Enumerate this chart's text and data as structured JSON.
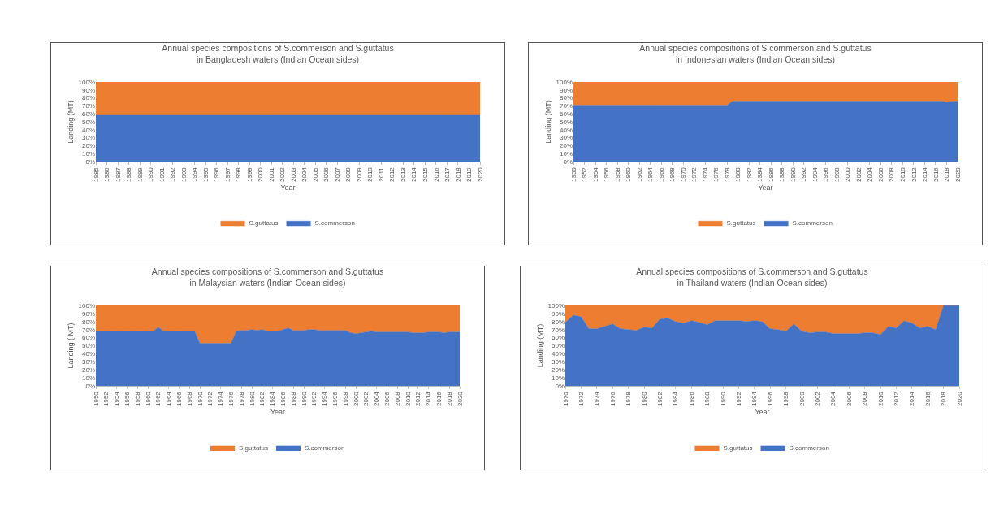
{
  "chart_data": [
    {
      "type": "area",
      "stacked": true,
      "title": "Annual species compositions of S.commerson and S.guttatus\nin Bangladesh waters (Indian Ocean sides)",
      "xlabel": "Year",
      "ylabel": "Landing (MT)",
      "legend": "bottom",
      "xlim": [
        1985,
        2020
      ],
      "xticks": [
        1985,
        1986,
        1987,
        1988,
        1989,
        1990,
        1991,
        1992,
        1993,
        1994,
        1995,
        1996,
        1997,
        1998,
        1999,
        2000,
        2001,
        2002,
        2003,
        2004,
        2005,
        2006,
        2007,
        2008,
        2009,
        2010,
        2011,
        2012,
        2013,
        2014,
        2015,
        2016,
        2017,
        2018,
        2019,
        2020
      ],
      "ylim": [
        0,
        100
      ],
      "yticks": [
        {
          "value": 0,
          "label": "0%"
        },
        {
          "value": 10,
          "label": "10%"
        },
        {
          "value": 20,
          "label": "20%"
        },
        {
          "value": 30,
          "label": "30%"
        },
        {
          "value": 40,
          "label": "40%"
        },
        {
          "value": 50,
          "label": "50%"
        },
        {
          "value": 60,
          "label": "60%"
        },
        {
          "value": 70,
          "label": "70%"
        },
        {
          "value": 80,
          "label": "80%"
        },
        {
          "value": 90,
          "label": "90%"
        },
        {
          "value": 100,
          "label": "100%"
        }
      ],
      "x": [
        1985,
        1986,
        1987,
        1988,
        1989,
        1990,
        1991,
        1992,
        1993,
        1994,
        1995,
        1996,
        1997,
        1998,
        1999,
        2000,
        2001,
        2002,
        2003,
        2004,
        2005,
        2006,
        2007,
        2008,
        2009,
        2010,
        2011,
        2012,
        2013,
        2014,
        2015,
        2016,
        2017,
        2018,
        2019,
        2020
      ],
      "series": [
        {
          "name": "S.commerson",
          "color": "#4472c4",
          "values": [
            59,
            59,
            59,
            59,
            59,
            59,
            59,
            59,
            59,
            59,
            59,
            59,
            59,
            59,
            59,
            59,
            59,
            59,
            59,
            59,
            59,
            59,
            59,
            59,
            59,
            59,
            59,
            59,
            59,
            59,
            59,
            59,
            59,
            59,
            59,
            59
          ]
        },
        {
          "name": "S.guttatus",
          "color": "#ed7d31",
          "values": [
            41,
            41,
            41,
            41,
            41,
            41,
            41,
            41,
            41,
            41,
            41,
            41,
            41,
            41,
            41,
            41,
            41,
            41,
            41,
            41,
            41,
            41,
            41,
            41,
            41,
            41,
            41,
            41,
            41,
            41,
            41,
            41,
            41,
            41,
            41,
            41
          ]
        }
      ]
    },
    {
      "type": "area",
      "stacked": true,
      "title": "Annual species compositions of S.commerson and S.guttatus\nin Indonesian waters (Indian Ocean sides)",
      "xlabel": "Year",
      "ylabel": "Landing (MT)",
      "legend": "bottom",
      "xlim": [
        1950,
        2020
      ],
      "xticks": [
        1950,
        1952,
        1954,
        1956,
        1958,
        1960,
        1962,
        1964,
        1966,
        1968,
        1970,
        1972,
        1974,
        1976,
        1978,
        1980,
        1982,
        1984,
        1986,
        1988,
        1990,
        1992,
        1994,
        1996,
        1998,
        2000,
        2002,
        2004,
        2006,
        2008,
        2010,
        2012,
        2014,
        2016,
        2018,
        2020
      ],
      "ylim": [
        0,
        100
      ],
      "yticks": [
        {
          "value": 0,
          "label": "0%"
        },
        {
          "value": 10,
          "label": "10%"
        },
        {
          "value": 20,
          "label": "20%"
        },
        {
          "value": 30,
          "label": "30%"
        },
        {
          "value": 40,
          "label": "40%"
        },
        {
          "value": 50,
          "label": "50%"
        },
        {
          "value": 60,
          "label": "60%"
        },
        {
          "value": 70,
          "label": "70%"
        },
        {
          "value": 80,
          "label": "80%"
        },
        {
          "value": 90,
          "label": "90%"
        },
        {
          "value": 100,
          "label": "100%"
        }
      ],
      "x": [
        1950,
        1951,
        1952,
        1953,
        1954,
        1955,
        1956,
        1957,
        1958,
        1959,
        1960,
        1961,
        1962,
        1963,
        1964,
        1965,
        1966,
        1967,
        1968,
        1969,
        1970,
        1971,
        1972,
        1973,
        1974,
        1975,
        1976,
        1977,
        1978,
        1979,
        1980,
        1981,
        1982,
        1983,
        1984,
        1985,
        1986,
        1987,
        1988,
        1989,
        1990,
        1991,
        1992,
        1993,
        1994,
        1995,
        1996,
        1997,
        1998,
        1999,
        2000,
        2001,
        2002,
        2003,
        2004,
        2005,
        2006,
        2007,
        2008,
        2009,
        2010,
        2011,
        2012,
        2013,
        2014,
        2015,
        2016,
        2017,
        2018,
        2019,
        2020
      ],
      "series": [
        {
          "name": "S.commerson",
          "color": "#4472c4",
          "values": [
            71,
            71,
            71,
            71,
            71,
            71,
            71,
            71,
            71,
            71,
            71,
            71,
            71,
            71,
            71,
            71,
            71,
            71,
            71,
            71,
            71,
            71,
            71,
            71,
            71,
            71,
            71,
            71,
            71,
            76,
            76,
            76,
            76,
            76,
            76,
            76,
            76,
            76,
            76,
            76,
            76,
            76,
            76,
            76,
            76,
            76,
            76,
            76,
            76,
            76,
            76,
            76,
            76,
            76,
            76,
            76,
            76,
            76,
            76,
            76,
            76,
            76,
            76,
            76,
            76,
            76,
            76,
            76,
            75,
            76,
            76
          ]
        },
        {
          "name": "S.guttatus",
          "color": "#ed7d31",
          "values": [
            29,
            29,
            29,
            29,
            29,
            29,
            29,
            29,
            29,
            29,
            29,
            29,
            29,
            29,
            29,
            29,
            29,
            29,
            29,
            29,
            29,
            29,
            29,
            29,
            29,
            29,
            29,
            29,
            29,
            24,
            24,
            24,
            24,
            24,
            24,
            24,
            24,
            24,
            24,
            24,
            24,
            24,
            24,
            24,
            24,
            24,
            24,
            24,
            24,
            24,
            24,
            24,
            24,
            24,
            24,
            24,
            24,
            24,
            24,
            24,
            24,
            24,
            24,
            24,
            24,
            24,
            24,
            24,
            25,
            24,
            24
          ]
        }
      ]
    },
    {
      "type": "area",
      "stacked": true,
      "title": "Annual species compositions of S.commerson and S.guttatus\nin Malaysian waters (Indian Ocean sides)",
      "xlabel": "Year",
      "ylabel": "Landing ( MT)",
      "legend": "bottom",
      "xlim": [
        1950,
        2020
      ],
      "xticks": [
        1950,
        1952,
        1954,
        1956,
        1958,
        1960,
        1962,
        1964,
        1966,
        1968,
        1970,
        1972,
        1974,
        1976,
        1978,
        1980,
        1982,
        1984,
        1986,
        1988,
        1990,
        1992,
        1994,
        1996,
        1998,
        2000,
        2002,
        2004,
        2006,
        2008,
        2010,
        2012,
        2014,
        2016,
        2018,
        2020
      ],
      "ylim": [
        0,
        100
      ],
      "yticks": [
        {
          "value": 0,
          "label": "0%"
        },
        {
          "value": 10,
          "label": "10%"
        },
        {
          "value": 20,
          "label": "20%"
        },
        {
          "value": 30,
          "label": "30%"
        },
        {
          "value": 40,
          "label": "40%"
        },
        {
          "value": 50,
          "label": "50%"
        },
        {
          "value": 60,
          "label": "60%"
        },
        {
          "value": 70,
          "label": "70%"
        },
        {
          "value": 80,
          "label": "80%"
        },
        {
          "value": 90,
          "label": "90%"
        },
        {
          "value": 100,
          "label": "100%"
        }
      ],
      "x": [
        1950,
        1951,
        1952,
        1953,
        1954,
        1955,
        1956,
        1957,
        1958,
        1959,
        1960,
        1961,
        1962,
        1963,
        1964,
        1965,
        1966,
        1967,
        1968,
        1969,
        1970,
        1971,
        1972,
        1973,
        1974,
        1975,
        1976,
        1977,
        1978,
        1979,
        1980,
        1981,
        1982,
        1983,
        1984,
        1985,
        1986,
        1987,
        1988,
        1989,
        1990,
        1991,
        1992,
        1993,
        1994,
        1995,
        1996,
        1997,
        1998,
        1999,
        2000,
        2001,
        2002,
        2003,
        2004,
        2005,
        2006,
        2007,
        2008,
        2009,
        2010,
        2011,
        2012,
        2013,
        2014,
        2015,
        2016,
        2017,
        2018,
        2019,
        2020
      ],
      "series": [
        {
          "name": "S.commerson",
          "color": "#4472c4",
          "values": [
            68,
            68,
            68,
            68,
            68,
            68,
            68,
            68,
            68,
            68,
            68,
            68,
            73,
            68,
            68,
            68,
            68,
            68,
            68,
            68,
            53,
            53,
            53,
            53,
            53,
            53,
            53,
            68,
            69,
            69,
            70,
            69,
            70,
            68,
            68,
            68,
            70,
            72,
            69,
            69,
            69,
            70,
            70,
            69,
            69,
            69,
            69,
            69,
            69,
            66,
            65,
            66,
            67,
            68,
            67,
            67,
            67,
            67,
            67,
            67,
            67,
            66,
            66,
            66,
            67,
            67,
            67,
            66,
            67,
            67,
            67
          ]
        },
        {
          "name": "S.guttatus",
          "color": "#ed7d31",
          "values": [
            32,
            32,
            32,
            32,
            32,
            32,
            32,
            32,
            32,
            32,
            32,
            32,
            27,
            32,
            32,
            32,
            32,
            32,
            32,
            32,
            47,
            47,
            47,
            47,
            47,
            47,
            47,
            32,
            31,
            31,
            30,
            31,
            30,
            32,
            32,
            32,
            30,
            28,
            31,
            31,
            31,
            30,
            30,
            31,
            31,
            31,
            31,
            31,
            31,
            34,
            35,
            34,
            33,
            32,
            33,
            33,
            33,
            33,
            33,
            33,
            33,
            34,
            34,
            34,
            33,
            33,
            33,
            34,
            33,
            33,
            33
          ]
        }
      ]
    },
    {
      "type": "area",
      "stacked": true,
      "title": "Annual species compositions of S.commerson and S.guttatus\nin Thailand waters (Indian Ocean sides)",
      "xlabel": "Year",
      "ylabel": "Landing (MT)",
      "legend": "bottom",
      "xlim": [
        1970,
        2020
      ],
      "xticks": [
        1970,
        1972,
        1974,
        1976,
        1978,
        1980,
        1982,
        1984,
        1986,
        1988,
        1990,
        1992,
        1994,
        1996,
        1998,
        2000,
        2002,
        2004,
        2006,
        2008,
        2010,
        2012,
        2014,
        2016,
        2018,
        2020
      ],
      "ylim": [
        0,
        100
      ],
      "yticks": [
        {
          "value": 0,
          "label": "0%"
        },
        {
          "value": 10,
          "label": "10%"
        },
        {
          "value": 20,
          "label": "20%"
        },
        {
          "value": 30,
          "label": "30%"
        },
        {
          "value": 40,
          "label": "40%"
        },
        {
          "value": 50,
          "label": "50%"
        },
        {
          "value": 60,
          "label": "60%"
        },
        {
          "value": 70,
          "label": "70%"
        },
        {
          "value": 80,
          "label": "80%"
        },
        {
          "value": 90,
          "label": "90%"
        },
        {
          "value": 100,
          "label": "100%"
        }
      ],
      "x": [
        1970,
        1971,
        1972,
        1973,
        1974,
        1975,
        1976,
        1977,
        1978,
        1979,
        1980,
        1981,
        1982,
        1983,
        1984,
        1985,
        1986,
        1987,
        1988,
        1989,
        1990,
        1991,
        1992,
        1993,
        1994,
        1995,
        1996,
        1997,
        1998,
        1999,
        2000,
        2001,
        2002,
        2003,
        2004,
        2005,
        2006,
        2007,
        2008,
        2009,
        2010,
        2011,
        2012,
        2013,
        2014,
        2015,
        2016,
        2017,
        2018,
        2019,
        2020
      ],
      "series": [
        {
          "name": "S.commerson",
          "color": "#4472c4",
          "values": [
            79,
            88,
            86,
            71,
            71,
            74,
            77,
            71,
            70,
            69,
            73,
            72,
            83,
            84,
            80,
            78,
            81,
            79,
            76,
            81,
            81,
            81,
            81,
            80,
            81,
            80,
            71,
            70,
            68,
            77,
            68,
            66,
            67,
            67,
            65,
            65,
            65,
            65,
            66,
            66,
            64,
            74,
            72,
            81,
            78,
            72,
            74,
            70,
            100,
            100,
            100
          ]
        },
        {
          "name": "S.guttatus",
          "color": "#ed7d31",
          "values": [
            21,
            12,
            14,
            29,
            29,
            26,
            23,
            29,
            30,
            31,
            27,
            28,
            17,
            16,
            20,
            22,
            19,
            21,
            24,
            19,
            19,
            19,
            19,
            20,
            19,
            20,
            29,
            30,
            32,
            23,
            32,
            34,
            33,
            33,
            35,
            35,
            35,
            35,
            34,
            34,
            36,
            26,
            28,
            19,
            22,
            28,
            26,
            30,
            0,
            0,
            0
          ]
        }
      ]
    }
  ]
}
